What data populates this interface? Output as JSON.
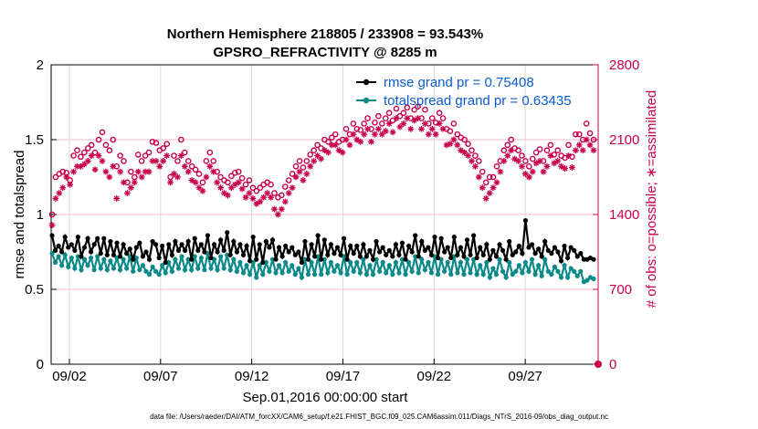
{
  "chart_data": {
    "type": "line",
    "title": "Northern Hemisphere 218805 / 233908 = 93.543%",
    "subtitle": "GPSRO_REFRACTIVITY @ 8285 m",
    "xlabel": "Sep.01,2016 00:00:00 start",
    "ylabel": "rmse and totalspread",
    "y2label": "# of obs: o=possible; ∗=assimilated",
    "ylim": [
      0,
      2
    ],
    "y2lim": [
      0,
      2800
    ],
    "yticks": [
      "0",
      "0.5",
      "1",
      "1.5",
      "2"
    ],
    "y2ticks": [
      "0",
      "700",
      "1400",
      "2100",
      "2800"
    ],
    "xticks": [
      "09/02",
      "09/07",
      "09/12",
      "09/17",
      "09/22",
      "09/27"
    ],
    "xtick_days": [
      2,
      7,
      12,
      17,
      22,
      27
    ],
    "xlim_days": [
      1.0,
      31.0
    ],
    "grid": true,
    "legend_position": "top-right",
    "footnote": "data file: /Users/raeder/DAI/ATM_forcXX/CAM6_setup/f.e21.FHIST_BGC.f09_025.CAM6assim.011/Diags_NTrS_2016-09/obs_diag_output.nc",
    "series": [
      {
        "name": "rmse grand pr = 0.75408",
        "color": "#000000",
        "marker": "filled-circle",
        "axis": "left",
        "values": [
          0.86,
          0.76,
          0.79,
          0.75,
          0.85,
          0.78,
          0.8,
          0.76,
          0.85,
          0.72,
          0.78,
          0.84,
          0.75,
          0.8,
          0.84,
          0.74,
          0.84,
          0.73,
          0.82,
          0.73,
          0.81,
          0.72,
          0.8,
          0.74,
          0.77,
          0.7,
          0.78,
          0.81,
          0.72,
          0.75,
          0.7,
          0.82,
          0.8,
          0.71,
          0.79,
          0.68,
          0.8,
          0.73,
          0.82,
          0.76,
          0.8,
          0.76,
          0.82,
          0.7,
          0.84,
          0.76,
          0.8,
          0.75,
          0.86,
          0.71,
          0.8,
          0.75,
          0.83,
          0.76,
          0.88,
          0.73,
          0.82,
          0.75,
          0.8,
          0.73,
          0.79,
          0.69,
          0.85,
          0.7,
          0.8,
          0.68,
          0.82,
          0.78,
          0.83,
          0.7,
          0.78,
          0.72,
          0.79,
          0.75,
          0.78,
          0.73,
          0.75,
          0.68,
          0.82,
          0.7,
          0.8,
          0.72,
          0.86,
          0.7,
          0.83,
          0.73,
          0.8,
          0.74,
          0.78,
          0.73,
          0.84,
          0.7,
          0.79,
          0.74,
          0.79,
          0.72,
          0.8,
          0.72,
          0.76,
          0.7,
          0.82,
          0.75,
          0.78,
          0.73,
          0.76,
          0.72,
          0.8,
          0.73,
          0.81,
          0.7,
          0.79,
          0.75,
          0.86,
          0.72,
          0.82,
          0.76,
          0.78,
          0.73,
          0.85,
          0.71,
          0.84,
          0.75,
          0.78,
          0.71,
          0.85,
          0.73,
          0.78,
          0.72,
          0.83,
          0.73,
          0.86,
          0.71,
          0.78,
          0.73,
          0.8,
          0.7,
          0.76,
          0.72,
          0.8,
          0.76,
          0.7,
          0.82,
          0.73,
          0.75,
          0.79,
          0.74,
          0.96,
          0.78,
          0.8,
          0.74,
          0.77,
          0.72,
          0.82,
          0.76,
          0.74,
          0.78,
          0.75,
          0.69,
          0.79,
          0.71,
          0.78,
          0.76,
          0.72,
          0.74,
          0.7,
          0.7,
          0.71,
          0.7
        ]
      },
      {
        "name": "totalspread grand pr = 0.63435",
        "color": "#0c8a8a",
        "marker": "filled-circle",
        "axis": "left",
        "values": [
          0.74,
          0.68,
          0.72,
          0.66,
          0.73,
          0.65,
          0.71,
          0.64,
          0.72,
          0.63,
          0.7,
          0.66,
          0.71,
          0.63,
          0.72,
          0.64,
          0.7,
          0.63,
          0.69,
          0.64,
          0.71,
          0.63,
          0.7,
          0.64,
          0.72,
          0.62,
          0.71,
          0.63,
          0.66,
          0.62,
          0.6,
          0.65,
          0.62,
          0.6,
          0.66,
          0.61,
          0.68,
          0.62,
          0.7,
          0.64,
          0.72,
          0.63,
          0.7,
          0.63,
          0.72,
          0.64,
          0.71,
          0.63,
          0.74,
          0.64,
          0.7,
          0.63,
          0.72,
          0.64,
          0.73,
          0.63,
          0.7,
          0.62,
          0.68,
          0.61,
          0.66,
          0.6,
          0.68,
          0.58,
          0.66,
          0.6,
          0.68,
          0.62,
          0.7,
          0.61,
          0.66,
          0.61,
          0.68,
          0.62,
          0.66,
          0.6,
          0.64,
          0.58,
          0.7,
          0.6,
          0.68,
          0.6,
          0.72,
          0.6,
          0.7,
          0.61,
          0.68,
          0.62,
          0.66,
          0.61,
          0.72,
          0.6,
          0.68,
          0.62,
          0.68,
          0.61,
          0.7,
          0.6,
          0.66,
          0.6,
          0.7,
          0.62,
          0.68,
          0.61,
          0.66,
          0.6,
          0.68,
          0.61,
          0.7,
          0.6,
          0.68,
          0.62,
          0.72,
          0.61,
          0.7,
          0.63,
          0.68,
          0.61,
          0.72,
          0.6,
          0.7,
          0.62,
          0.68,
          0.6,
          0.72,
          0.61,
          0.68,
          0.6,
          0.7,
          0.61,
          0.7,
          0.6,
          0.66,
          0.6,
          0.68,
          0.58,
          0.64,
          0.6,
          0.7,
          0.62,
          0.58,
          0.68,
          0.6,
          0.62,
          0.66,
          0.61,
          0.68,
          0.62,
          0.7,
          0.6,
          0.66,
          0.59,
          0.7,
          0.62,
          0.6,
          0.65,
          0.62,
          0.58,
          0.66,
          0.58,
          0.64,
          0.62,
          0.59,
          0.62,
          0.55,
          0.56,
          0.58,
          0.57
        ]
      },
      {
        "name": "possible",
        "color": "#c8004a",
        "marker": "open-circle",
        "axis": "right",
        "values": [
          1400,
          1750,
          1780,
          1800,
          1790,
          1720,
          1950,
          2000,
          1940,
          1980,
          2020,
          2050,
          1980,
          2100,
          2170,
          2050,
          2000,
          2100,
          1850,
          1950,
          1900,
          1700,
          1800,
          1750,
          1960,
          1900,
          1950,
          1980,
          2080,
          2070,
          2000,
          2020,
          2060,
          1750,
          1950,
          1900,
          2100,
          1980,
          1900,
          1850,
          1820,
          1780,
          1700,
          1900,
          1980,
          1900,
          1800,
          1750,
          1720,
          1700,
          1760,
          1790,
          1800,
          1740,
          1680,
          1720,
          1650,
          1620,
          1650,
          1680,
          1700,
          1680,
          1600,
          1560,
          1580,
          1660,
          1720,
          1780,
          1850,
          1900,
          1840,
          1900,
          1960,
          2000,
          2050,
          2020,
          2100,
          2080,
          2120,
          2150,
          2080,
          2100,
          2200,
          2150,
          2250,
          2200,
          2190,
          2250,
          2300,
          2200,
          2260,
          2320,
          2250,
          2300,
          2350,
          2280,
          2390,
          2320,
          2350,
          2400,
          2300,
          2380,
          2410,
          2300,
          2380,
          2250,
          2300,
          2260,
          2350,
          2300,
          2200,
          2180,
          2250,
          2150,
          2120,
          2100,
          2060,
          2000,
          1950,
          1900,
          1800,
          1700,
          1750,
          1750,
          1850,
          1900,
          2000,
          2050,
          2100,
          2020,
          2000,
          1950,
          1900,
          1850,
          1920,
          1980,
          2010,
          1900,
          2000,
          2050,
          1960,
          2000,
          1950,
          1930,
          2050,
          1940,
          2150,
          2150,
          2100,
          2250,
          2160,
          2100
        ]
      },
      {
        "name": "assimilated",
        "color": "#c8004a",
        "marker": "asterisk",
        "axis": "right",
        "values": [
          1300,
          1550,
          1600,
          1650,
          1750,
          1680,
          1800,
          1850,
          1850,
          1870,
          1900,
          1950,
          1820,
          1950,
          1900,
          1800,
          1750,
          1850,
          1550,
          1800,
          1700,
          1600,
          1650,
          1700,
          1800,
          1750,
          1800,
          1800,
          1900,
          1900,
          1850,
          1900,
          1950,
          1700,
          1780,
          1750,
          1950,
          1850,
          1800,
          1720,
          1700,
          1650,
          1620,
          1750,
          1850,
          1800,
          1700,
          1650,
          1600,
          1580,
          1650,
          1680,
          1700,
          1640,
          1560,
          1600,
          1550,
          1500,
          1520,
          1560,
          1600,
          1560,
          1450,
          1400,
          1450,
          1520,
          1600,
          1650,
          1750,
          1800,
          1720,
          1780,
          1850,
          1900,
          1950,
          1920,
          2000,
          1980,
          2050,
          2050,
          2000,
          1980,
          2100,
          2050,
          2150,
          2100,
          2080,
          2150,
          2200,
          2080,
          2150,
          2200,
          2150,
          2180,
          2250,
          2170,
          2300,
          2220,
          2250,
          2300,
          2200,
          2280,
          2300,
          2200,
          2250,
          2150,
          2200,
          2150,
          2250,
          2200,
          2050,
          2060,
          2100,
          2050,
          2000,
          1980,
          1950,
          1900,
          1850,
          1750,
          1650,
          1550,
          1600,
          1650,
          1700,
          1800,
          1900,
          1950,
          2000,
          1920,
          1900,
          1850,
          1780,
          1750,
          1800,
          1880,
          1900,
          1800,
          1850,
          1950,
          1880,
          1900,
          1850,
          1830,
          1950,
          1840,
          2000,
          2050,
          2000,
          2100,
          2050,
          2000
        ]
      }
    ]
  }
}
